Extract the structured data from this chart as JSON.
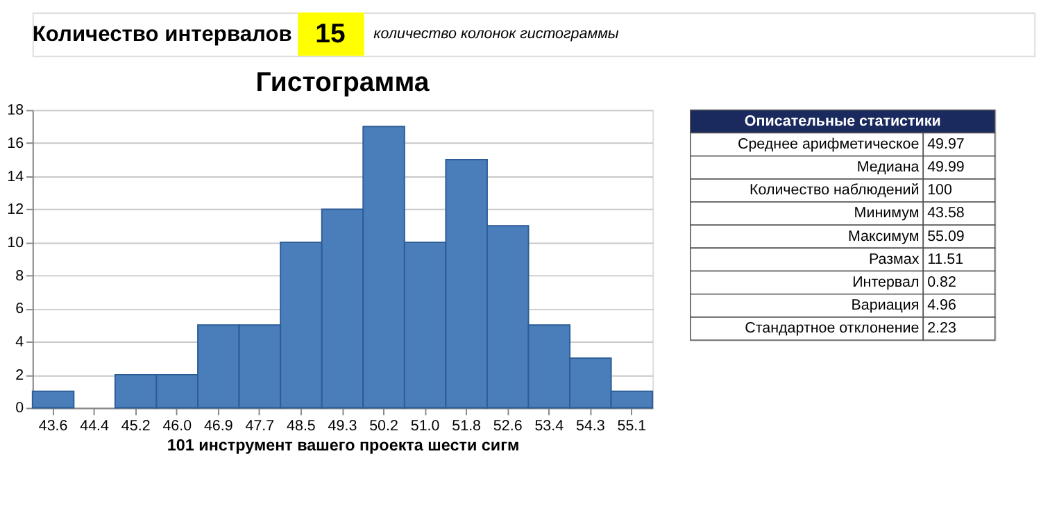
{
  "chart_data": [
    {
      "type": "bar",
      "title": "Гистограмма",
      "xlabel": "101 инструмент вашего проекта шести сигм",
      "categories": [
        "43.6",
        "44.4",
        "45.2",
        "46.0",
        "46.9",
        "47.7",
        "48.5",
        "49.3",
        "50.2",
        "51.0",
        "51.8",
        "52.6",
        "53.4",
        "54.3",
        "55.1"
      ],
      "values": [
        1,
        0,
        2,
        2,
        5,
        5,
        10,
        12,
        17,
        10,
        15,
        11,
        5,
        3,
        1
      ],
      "color": "#4a7ebb",
      "ylim": [
        0,
        18
      ],
      "yticks": [
        0,
        2,
        4,
        6,
        8,
        10,
        12,
        14,
        16,
        18
      ],
      "grid": "y",
      "annotations": [
        "Количество интервалов",
        "15",
        "количество колонок гистограммы"
      ]
    },
    {
      "type": "other",
      "title": "Описательные статистики",
      "annotations": [
        "Среднее арифметическое",
        "49.97",
        "Медиана",
        "49.99",
        "Количество наблюдений",
        "100",
        "Минимум",
        "43.58",
        "Максимум",
        "55.09",
        "Размах",
        "11.51",
        "Интервал",
        "0.82",
        "Вариация",
        "4.96",
        "Стандартное отклонение",
        "2.23"
      ]
    }
  ]
}
